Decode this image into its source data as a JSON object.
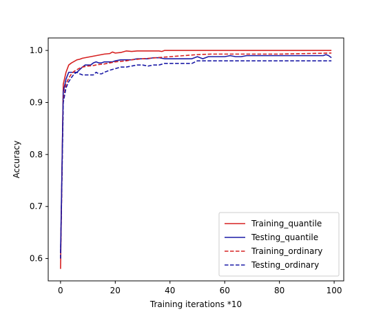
{
  "chart_data": {
    "type": "line",
    "title": "",
    "xlabel": "Training iterations *10",
    "ylabel": "Accuracy",
    "xlim": [
      -4.5,
      103.5
    ],
    "ylim": [
      0.557,
      1.024
    ],
    "xticks": [
      0,
      20,
      40,
      60,
      80,
      100
    ],
    "xtick_labels": [
      "0",
      "20",
      "40",
      "60",
      "80",
      "100"
    ],
    "yticks": [
      0.6,
      0.7,
      0.8,
      0.9,
      1.0
    ],
    "ytick_labels": [
      "0.6",
      "0.7",
      "0.8",
      "0.9",
      "1.0"
    ],
    "grid": false,
    "legend_position": "bottom-right",
    "series": [
      {
        "name": "Training_quantile",
        "color": "#d62020",
        "style": "solid",
        "x": [
          0,
          1,
          2,
          3,
          4,
          5,
          6,
          7,
          8,
          10,
          12,
          14,
          16,
          18,
          19,
          20,
          22,
          24,
          26,
          28,
          30,
          32,
          34,
          36,
          37,
          38,
          40,
          50,
          60,
          70,
          80,
          90,
          99
        ],
        "y": [
          0.58,
          0.935,
          0.958,
          0.972,
          0.976,
          0.979,
          0.982,
          0.983,
          0.985,
          0.987,
          0.989,
          0.991,
          0.993,
          0.994,
          0.997,
          0.995,
          0.996,
          0.999,
          0.998,
          0.999,
          0.999,
          0.999,
          0.999,
          0.999,
          0.998,
          1.0,
          1.0,
          1.0,
          1.0,
          1.0,
          1.0,
          1.0,
          1.0
        ]
      },
      {
        "name": "Testing_quantile",
        "color": "#1a1aa6",
        "style": "solid",
        "x": [
          0,
          1,
          2,
          3,
          4,
          5,
          6,
          7,
          8,
          9,
          10,
          11,
          12,
          13,
          14,
          15,
          16,
          17,
          18,
          19,
          20,
          22,
          24,
          26,
          28,
          30,
          32,
          34,
          36,
          38,
          40,
          42,
          44,
          46,
          48,
          50,
          52,
          54,
          56,
          58,
          60,
          62,
          64,
          66,
          68,
          70,
          72,
          74,
          76,
          78,
          80,
          82,
          84,
          86,
          88,
          90,
          92,
          94,
          96,
          97,
          98,
          99
        ],
        "y": [
          0.61,
          0.92,
          0.945,
          0.958,
          0.958,
          0.958,
          0.958,
          0.963,
          0.968,
          0.972,
          0.972,
          0.972,
          0.976,
          0.978,
          0.976,
          0.976,
          0.978,
          0.978,
          0.978,
          0.978,
          0.98,
          0.982,
          0.982,
          0.982,
          0.984,
          0.984,
          0.984,
          0.986,
          0.986,
          0.984,
          0.984,
          0.984,
          0.984,
          0.984,
          0.984,
          0.988,
          0.984,
          0.988,
          0.988,
          0.988,
          0.988,
          0.99,
          0.988,
          0.988,
          0.99,
          0.99,
          0.99,
          0.99,
          0.99,
          0.99,
          0.99,
          0.99,
          0.99,
          0.99,
          0.99,
          0.99,
          0.99,
          0.99,
          0.99,
          0.992,
          0.99,
          0.986
        ]
      },
      {
        "name": "Training_ordinary",
        "color": "#d62020",
        "style": "dashed",
        "x": [
          0,
          1,
          2,
          3,
          4,
          5,
          6,
          7,
          8,
          10,
          12,
          14,
          16,
          18,
          20,
          22,
          24,
          26,
          28,
          30,
          35,
          40,
          45,
          50,
          55,
          60,
          70,
          80,
          90,
          99
        ],
        "y": [
          0.6,
          0.905,
          0.935,
          0.947,
          0.955,
          0.96,
          0.963,
          0.966,
          0.968,
          0.97,
          0.971,
          0.973,
          0.974,
          0.976,
          0.978,
          0.979,
          0.98,
          0.982,
          0.983,
          0.984,
          0.986,
          0.988,
          0.99,
          0.992,
          0.993,
          0.993,
          0.993,
          0.993,
          0.994,
          0.995
        ]
      },
      {
        "name": "Testing_ordinary",
        "color": "#1a1aa6",
        "style": "dashed",
        "x": [
          0,
          1,
          2,
          3,
          4,
          5,
          6,
          7,
          8,
          9,
          10,
          12,
          13,
          14,
          15,
          16,
          18,
          20,
          22,
          24,
          26,
          28,
          30,
          32,
          34,
          36,
          38,
          40,
          44,
          48,
          50,
          52,
          54,
          60,
          70,
          80,
          90,
          99
        ],
        "y": [
          0.6,
          0.9,
          0.928,
          0.94,
          0.948,
          0.955,
          0.958,
          0.955,
          0.953,
          0.953,
          0.953,
          0.953,
          0.958,
          0.955,
          0.955,
          0.958,
          0.962,
          0.965,
          0.968,
          0.968,
          0.97,
          0.972,
          0.972,
          0.97,
          0.972,
          0.972,
          0.975,
          0.975,
          0.975,
          0.975,
          0.98,
          0.98,
          0.98,
          0.98,
          0.98,
          0.98,
          0.98,
          0.98
        ]
      }
    ]
  }
}
